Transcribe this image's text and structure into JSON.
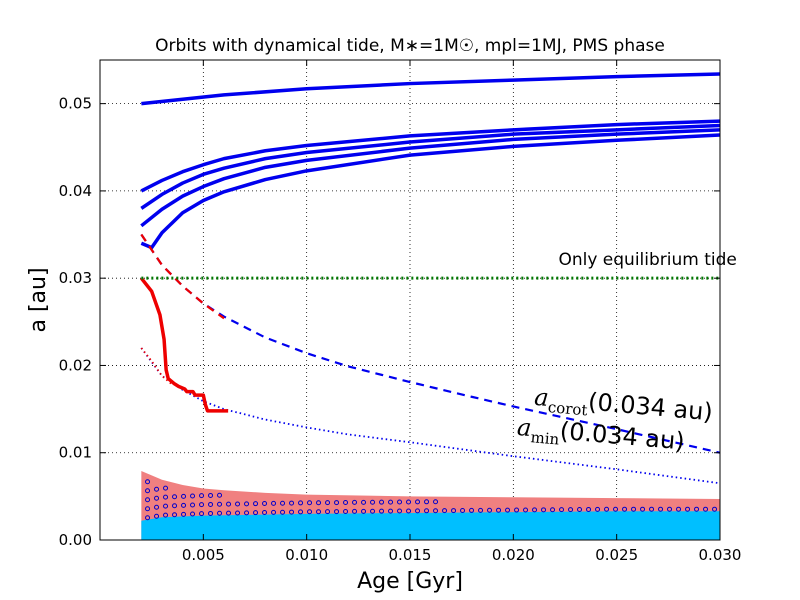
{
  "chart_data": {
    "type": "line",
    "title": "Orbits with dynamical tide, M∗=1M☉, mpl=1MJ, PMS phase",
    "xlabel": "Age [Gyr]",
    "ylabel": "a [au]",
    "xlim": [
      0.0,
      0.03
    ],
    "ylim": [
      0.0,
      0.055
    ],
    "xticks": [
      "0.005",
      "0.010",
      "0.015",
      "0.020",
      "0.025",
      "0.030"
    ],
    "yticks": [
      "0.00",
      "0.01",
      "0.02",
      "0.03",
      "0.04",
      "0.05"
    ],
    "grid": true,
    "colors": {
      "orbit": "#0000ee",
      "decaying_orbit": "#ee0000",
      "equilibrium": "#007700",
      "band_salmon": "#f08080",
      "band_cyan": "#00bfff",
      "circles": "#0000cc"
    },
    "annotations": [
      {
        "name": "equilibrium-label",
        "text": "Only equilibrium tide",
        "x": 0.0265,
        "y": 0.0315
      },
      {
        "name": "acorot-label",
        "main": "a",
        "sub": "corot",
        "rest": "(0.034 au)",
        "x": 0.0253,
        "y": 0.0146
      },
      {
        "name": "amin-label",
        "main": "a",
        "sub": "min",
        "rest": "(0.034 au)",
        "x": 0.0242,
        "y": 0.0112
      }
    ],
    "series": [
      {
        "name": "orbit-a0-0.050",
        "style": "solid",
        "color": "#0000ee",
        "x": [
          0.002,
          0.004,
          0.006,
          0.01,
          0.015,
          0.02,
          0.025,
          0.03
        ],
        "y": [
          0.05,
          0.0505,
          0.051,
          0.0517,
          0.0523,
          0.0527,
          0.0531,
          0.0534
        ]
      },
      {
        "name": "orbit-a0-0.040",
        "style": "solid",
        "color": "#0000ee",
        "x": [
          0.002,
          0.003,
          0.004,
          0.005,
          0.006,
          0.008,
          0.01,
          0.015,
          0.02,
          0.025,
          0.03
        ],
        "y": [
          0.04,
          0.0412,
          0.0422,
          0.043,
          0.0437,
          0.0446,
          0.0452,
          0.0463,
          0.047,
          0.0476,
          0.048
        ]
      },
      {
        "name": "orbit-a0-0.038",
        "style": "solid",
        "color": "#0000ee",
        "x": [
          0.002,
          0.003,
          0.004,
          0.005,
          0.006,
          0.008,
          0.01,
          0.015,
          0.02,
          0.025,
          0.03
        ],
        "y": [
          0.038,
          0.0396,
          0.0409,
          0.0419,
          0.0426,
          0.0437,
          0.0444,
          0.0456,
          0.0465,
          0.047,
          0.0475
        ]
      },
      {
        "name": "orbit-a0-0.036",
        "style": "solid",
        "color": "#0000ee",
        "x": [
          0.002,
          0.003,
          0.004,
          0.005,
          0.006,
          0.008,
          0.01,
          0.015,
          0.02,
          0.025,
          0.03
        ],
        "y": [
          0.036,
          0.0379,
          0.0394,
          0.0405,
          0.0414,
          0.0427,
          0.0435,
          0.0449,
          0.0459,
          0.0465,
          0.047
        ]
      },
      {
        "name": "orbit-a0-0.034",
        "style": "solid",
        "color": "#0000ee",
        "x": [
          0.002,
          0.0025,
          0.003,
          0.004,
          0.005,
          0.006,
          0.008,
          0.01,
          0.015,
          0.02,
          0.025,
          0.03
        ],
        "y": [
          0.034,
          0.0335,
          0.0352,
          0.0375,
          0.0389,
          0.0399,
          0.0413,
          0.0423,
          0.0441,
          0.0451,
          0.0458,
          0.0464
        ]
      },
      {
        "name": "acorot",
        "style": "dashed",
        "color": "#0000ee",
        "x": [
          0.002,
          0.003,
          0.004,
          0.005,
          0.006,
          0.008,
          0.01,
          0.012,
          0.015,
          0.018,
          0.02,
          0.025,
          0.03
        ],
        "y": [
          0.035,
          0.0315,
          0.0291,
          0.0271,
          0.0256,
          0.0232,
          0.0214,
          0.0199,
          0.0181,
          0.0164,
          0.0153,
          0.0127,
          0.01
        ]
      },
      {
        "name": "acorot-red",
        "style": "dashed",
        "color": "#ee0000",
        "x": [
          0.002,
          0.003,
          0.004,
          0.005,
          0.006
        ],
        "y": [
          0.035,
          0.0315,
          0.0291,
          0.0271,
          0.0254
        ]
      },
      {
        "name": "amin",
        "style": "dotted",
        "color": "#0000ee",
        "x": [
          0.002,
          0.003,
          0.004,
          0.005,
          0.006,
          0.008,
          0.01,
          0.012,
          0.015,
          0.02,
          0.025,
          0.03
        ],
        "y": [
          0.022,
          0.0188,
          0.0172,
          0.0159,
          0.015,
          0.0138,
          0.0129,
          0.0121,
          0.0112,
          0.0096,
          0.0081,
          0.0065
        ]
      },
      {
        "name": "amin-red",
        "style": "dotted",
        "color": "#ee0000",
        "x": [
          0.002,
          0.0025,
          0.003,
          0.0035
        ],
        "y": [
          0.022,
          0.0205,
          0.0188,
          0.0178
        ]
      },
      {
        "name": "decaying-orbit",
        "style": "solid",
        "color": "#ee0000",
        "x": [
          0.002,
          0.0025,
          0.0029,
          0.0031,
          0.0032,
          0.0033,
          0.0034,
          0.0036,
          0.0038,
          0.0041,
          0.0042,
          0.0045,
          0.0046,
          0.005,
          0.0051,
          0.0052,
          0.0062
        ],
        "y": [
          0.03,
          0.0285,
          0.0258,
          0.023,
          0.0195,
          0.0185,
          0.0183,
          0.0179,
          0.0176,
          0.0173,
          0.017,
          0.017,
          0.0166,
          0.0166,
          0.0155,
          0.0148,
          0.0148
        ]
      },
      {
        "name": "equilibrium-tide",
        "style": "dotted-thick",
        "color": "#007700",
        "x": [
          0.002,
          0.03
        ],
        "y": [
          0.03,
          0.03
        ]
      }
    ],
    "bands": [
      {
        "name": "salmon-band",
        "color": "#f08080",
        "x": [
          0.002,
          0.003,
          0.004,
          0.005,
          0.006,
          0.008,
          0.01,
          0.015,
          0.02,
          0.025,
          0.03
        ],
        "y": [
          0.0079,
          0.0069,
          0.0063,
          0.0059,
          0.0057,
          0.0054,
          0.0052,
          0.005,
          0.0049,
          0.0048,
          0.0047
        ]
      },
      {
        "name": "cyan-band",
        "color": "#00bfff",
        "x": [
          0.002,
          0.003,
          0.005,
          0.01,
          0.015,
          0.02,
          0.025,
          0.03
        ],
        "y": [
          0.0022,
          0.0026,
          0.0028,
          0.003,
          0.0031,
          0.0032,
          0.0033,
          0.0033
        ]
      }
    ],
    "circle_region": {
      "name": "circle-hatch",
      "x_start": 0.0023,
      "x_end": 0.03,
      "y_low": 0.0027,
      "color": "#0000cc"
    }
  }
}
